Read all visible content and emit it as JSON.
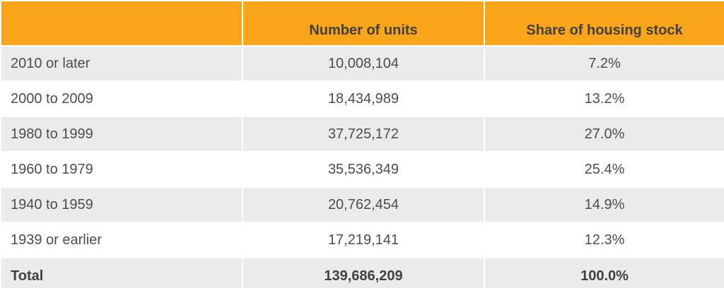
{
  "table": {
    "header": {
      "col1": "",
      "col2": "Number of units",
      "col3": "Share of housing stock"
    },
    "rows": [
      {
        "label": "2010 or later",
        "units": "10,008,104",
        "share": "7.2%"
      },
      {
        "label": "2000 to 2009",
        "units": "18,434,989",
        "share": "13.2%"
      },
      {
        "label": "1980 to 1999",
        "units": "37,725,172",
        "share": "27.0%"
      },
      {
        "label": "1960 to 1979",
        "units": "35,536,349",
        "share": "25.4%"
      },
      {
        "label": "1940 to 1959",
        "units": "20,762,454",
        "share": "14.9%"
      },
      {
        "label": "1939 or earlier",
        "units": "17,219,141",
        "share": "12.3%"
      }
    ],
    "total": {
      "label": "Total",
      "units": "139,686,209",
      "share": "100.0%"
    },
    "colors": {
      "header_bg": "#F9A51A",
      "alt_row_bg": "#EBEBEB",
      "row_bg": "#FFFFFF",
      "header_text": "#414042",
      "body_text": "#4D4D4F"
    }
  },
  "chart_data": {
    "type": "table",
    "title": "",
    "columns": [
      "",
      "Number of units",
      "Share of housing stock"
    ],
    "categories": [
      "2010 or later",
      "2000 to 2009",
      "1980 to 1999",
      "1960 to 1979",
      "1940 to 1959",
      "1939 or earlier",
      "Total"
    ],
    "series": [
      {
        "name": "Number of units",
        "values": [
          10008104,
          18434989,
          37725172,
          35536349,
          20762454,
          17219141,
          139686209
        ]
      },
      {
        "name": "Share of housing stock (%)",
        "values": [
          7.2,
          13.2,
          27.0,
          25.4,
          14.9,
          12.3,
          100.0
        ]
      }
    ],
    "layout_hints": {
      "header_background": "#F9A51A",
      "zebra_striping": true,
      "value_alignment": "center",
      "label_alignment": "left",
      "total_row_bold": true
    }
  }
}
